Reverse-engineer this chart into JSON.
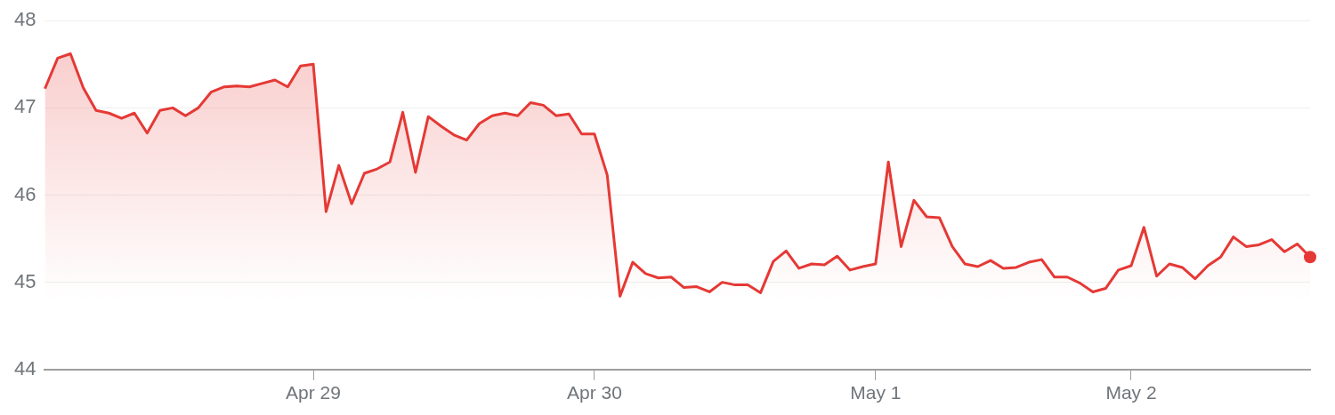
{
  "chart_data": {
    "type": "area",
    "categories": [
      null,
      null,
      null,
      null,
      null,
      null,
      null,
      null,
      null,
      null,
      null,
      null,
      null,
      null,
      null,
      null,
      null,
      null,
      null,
      null,
      null,
      "Apr 29",
      null,
      null,
      null,
      null,
      null,
      null,
      null,
      null,
      null,
      null,
      null,
      null,
      null,
      null,
      null,
      null,
      null,
      null,
      null,
      null,
      null,
      "Apr 30",
      null,
      null,
      null,
      null,
      null,
      null,
      null,
      null,
      null,
      null,
      null,
      null,
      null,
      null,
      null,
      null,
      null,
      null,
      null,
      null,
      null,
      "May 1",
      null,
      null,
      null,
      null,
      null,
      null,
      null,
      null,
      null,
      null,
      null,
      null,
      null,
      null,
      null,
      null,
      null,
      null,
      null,
      "May 2",
      null,
      null,
      null,
      null,
      null,
      null,
      null,
      null,
      null,
      null,
      null,
      null,
      null,
      null
    ],
    "series": [
      {
        "color": "#e53935",
        "values": [
          47.22,
          47.57,
          47.62,
          47.23,
          46.97,
          46.94,
          46.88,
          46.94,
          46.71,
          46.97,
          47.0,
          46.91,
          47.0,
          47.18,
          47.24,
          47.25,
          47.24,
          47.28,
          47.32,
          47.24,
          47.48,
          47.5,
          45.81,
          46.34,
          45.9,
          46.25,
          46.3,
          46.38,
          46.95,
          46.26,
          46.9,
          46.79,
          46.69,
          46.63,
          46.82,
          46.91,
          46.94,
          46.91,
          47.06,
          47.03,
          46.91,
          46.93,
          46.7,
          46.7,
          46.23,
          44.84,
          45.23,
          45.1,
          45.05,
          45.06,
          44.94,
          44.95,
          44.89,
          45.0,
          44.97,
          44.97,
          44.88,
          45.24,
          45.36,
          45.16,
          45.21,
          45.2,
          45.3,
          45.14,
          45.18,
          45.21,
          46.38,
          45.41,
          45.94,
          45.75,
          45.74,
          45.41,
          45.21,
          45.18,
          45.25,
          45.16,
          45.17,
          45.23,
          45.26,
          45.06,
          45.06,
          44.99,
          44.89,
          44.93,
          45.14,
          45.19,
          45.63,
          45.07,
          45.21,
          45.17,
          45.04,
          45.19,
          45.29,
          45.52,
          45.41,
          45.43,
          45.49,
          45.35,
          45.44,
          45.29
        ]
      }
    ],
    "ylim": [
      44,
      48
    ],
    "yticks": [
      44,
      45,
      46,
      47,
      48
    ],
    "grid": "y",
    "legend": false
  }
}
